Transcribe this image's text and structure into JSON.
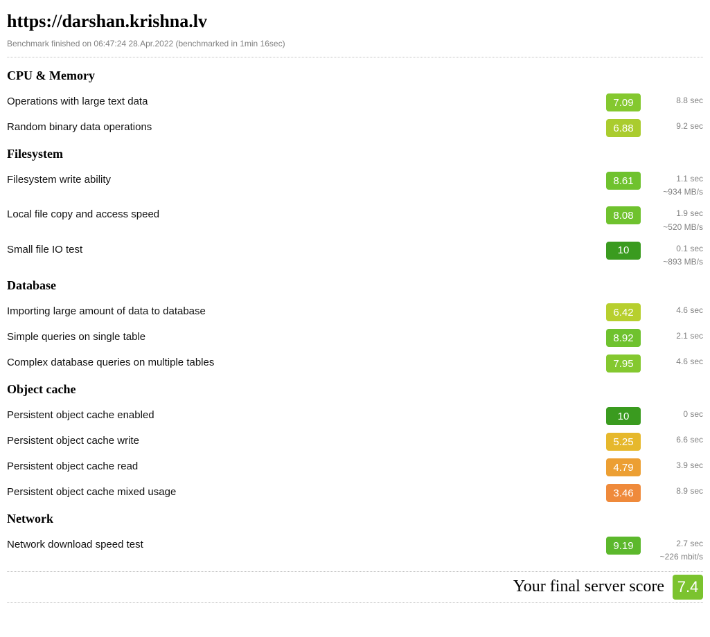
{
  "header": {
    "title": "https://darshan.krishna.lv",
    "subtitle": "Benchmark finished on 06:47:24 28.Apr.2022 (benchmarked in 1min 16sec)"
  },
  "colors": {
    "score_10": "#3a9b1f",
    "score_9": "#5cb82c",
    "score_8": "#6fc22e",
    "score_7": "#84c82f",
    "score_6_9": "#aacc2e",
    "score_6_4": "#b7cf2e",
    "score_5_2": "#e6b82c",
    "score_4_8": "#ec9f33",
    "score_3_5": "#ef8a3b",
    "final": "#7bc32e"
  },
  "sections": [
    {
      "heading": "CPU & Memory",
      "items": [
        {
          "label": "Operations with large text data",
          "score": "7.09",
          "color_key": "score_7",
          "time": "8.8 sec",
          "extra": ""
        },
        {
          "label": "Random binary data operations",
          "score": "6.88",
          "color_key": "score_6_9",
          "time": "9.2 sec",
          "extra": ""
        }
      ]
    },
    {
      "heading": "Filesystem",
      "items": [
        {
          "label": "Filesystem write ability",
          "score": "8.61",
          "color_key": "score_8",
          "time": "1.1 sec",
          "extra": "~934 MB/s"
        },
        {
          "label": "Local file copy and access speed",
          "score": "8.08",
          "color_key": "score_8",
          "time": "1.9 sec",
          "extra": "~520 MB/s"
        },
        {
          "label": "Small file IO test",
          "score": "10",
          "color_key": "score_10",
          "time": "0.1 sec",
          "extra": "~893 MB/s"
        }
      ]
    },
    {
      "heading": "Database",
      "items": [
        {
          "label": "Importing large amount of data to database",
          "score": "6.42",
          "color_key": "score_6_4",
          "time": "4.6 sec",
          "extra": ""
        },
        {
          "label": "Simple queries on single table",
          "score": "8.92",
          "color_key": "score_8",
          "time": "2.1 sec",
          "extra": ""
        },
        {
          "label": "Complex database queries on multiple tables",
          "score": "7.95",
          "color_key": "score_7",
          "time": "4.6 sec",
          "extra": ""
        }
      ]
    },
    {
      "heading": "Object cache",
      "items": [
        {
          "label": "Persistent object cache enabled",
          "score": "10",
          "color_key": "score_10",
          "time": "0 sec",
          "extra": ""
        },
        {
          "label": "Persistent object cache write",
          "score": "5.25",
          "color_key": "score_5_2",
          "time": "6.6 sec",
          "extra": ""
        },
        {
          "label": "Persistent object cache read",
          "score": "4.79",
          "color_key": "score_4_8",
          "time": "3.9 sec",
          "extra": ""
        },
        {
          "label": "Persistent object cache mixed usage",
          "score": "3.46",
          "color_key": "score_3_5",
          "time": "8.9 sec",
          "extra": ""
        }
      ]
    },
    {
      "heading": "Network",
      "items": [
        {
          "label": "Network download speed test",
          "score": "9.19",
          "color_key": "score_9",
          "time": "2.7 sec",
          "extra": "~226 mbit/s"
        }
      ]
    }
  ],
  "final": {
    "label": "Your final server score",
    "score": "7.4"
  }
}
